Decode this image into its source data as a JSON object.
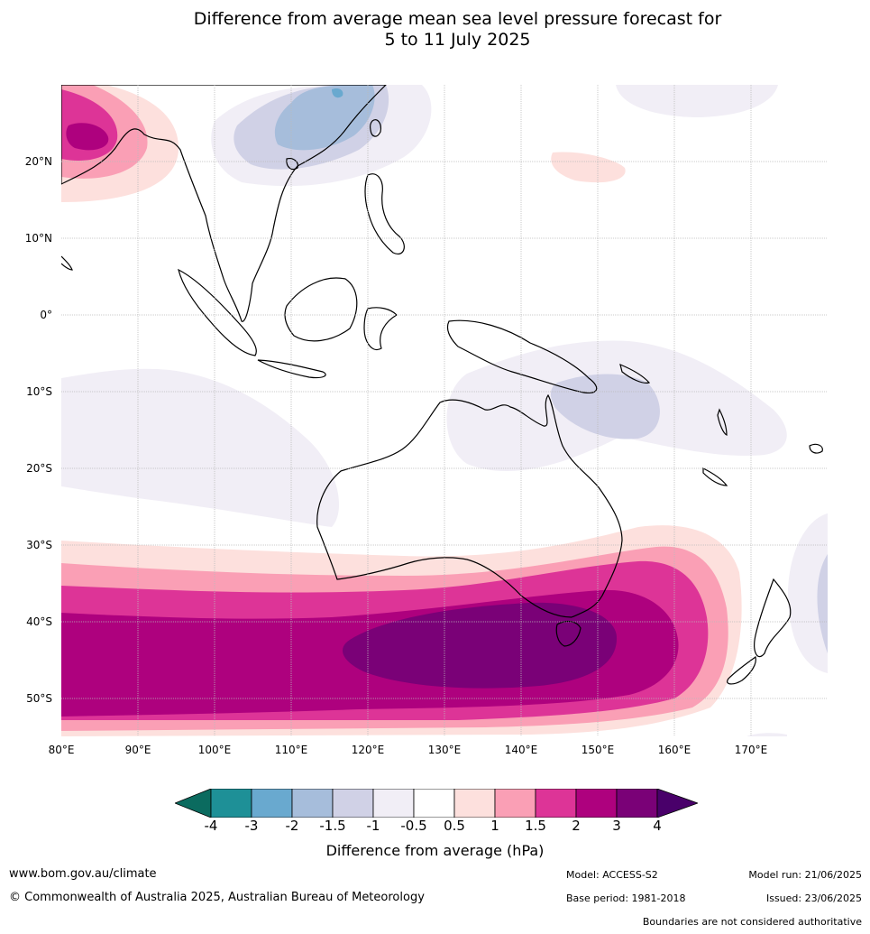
{
  "title": {
    "line1": "Difference from average mean sea level pressure forecast for",
    "line2": "5 to 11 July 2025"
  },
  "map": {
    "lat_labels": [
      "20°N",
      "10°N",
      "0°",
      "10°S",
      "20°S",
      "30°S",
      "40°S",
      "50°S"
    ],
    "lon_labels": [
      "80°E",
      "90°E",
      "100°E",
      "110°E",
      "120°E",
      "130°E",
      "140°E",
      "150°E",
      "160°E",
      "170°E"
    ],
    "colors": {
      "neg4": "#0b6b5f",
      "neg3": "#1e9097",
      "neg2": "#69a9cf",
      "neg15": "#a6bddb",
      "neg1": "#d0d1e6",
      "neg05": "#f1eef6",
      "zero": "#ffffff",
      "pos05": "#fde0dd",
      "pos1": "#fa9fb5",
      "pos15": "#dd3497",
      "pos2": "#ae017e",
      "pos3": "#7a0177",
      "pos4": "#49006a",
      "coast": "#000000",
      "border": "#808080",
      "grid": "#bbbbbb"
    }
  },
  "colorbar": {
    "ticks": [
      "-4",
      "-3",
      "-2",
      "-1.5",
      "-1",
      "-0.5",
      "0.5",
      "1",
      "1.5",
      "2",
      "3",
      "4"
    ],
    "label": "Difference from average (hPa)"
  },
  "footer": {
    "website": "www.bom.gov.au/climate",
    "copyright": "© Commonwealth of Australia 2025, Australian Bureau of Meteorology",
    "model": "Model: ACCESS-S2",
    "base_period": "Base period: 1981-2018",
    "model_run": "Model run: 21/06/2025",
    "issued": "Issued: 23/06/2025",
    "disclaimer": "Boundaries are not considered authoritative"
  }
}
